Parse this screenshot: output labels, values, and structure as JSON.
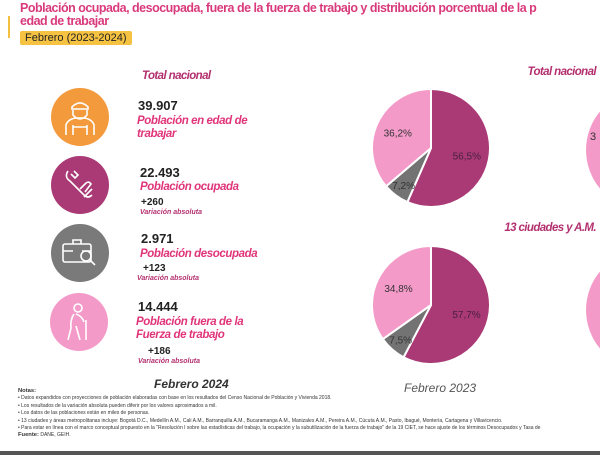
{
  "header": {
    "title_line1": "Población ocupada, desocupada, fuera de la fuerza de trabajo y distribución porcentual de la p",
    "title_line2": "edad de trabajar",
    "period_badge": "Febrero (2023-2024)"
  },
  "left": {
    "section": "Total nacional",
    "items": [
      {
        "icon": "worker-icon",
        "value": "39.907",
        "label1": "Población en edad de",
        "label2": "trabajar",
        "color": "#f39a3d"
      },
      {
        "icon": "wrench-hand-icon",
        "value": "22.493",
        "label1": "Población ocupada",
        "change": "+260",
        "change_label": "Variación absoluta",
        "color": "#a93a75"
      },
      {
        "icon": "briefcase-search-icon",
        "value": "2.971",
        "label1": "Población desocupada",
        "change": "+123",
        "change_label": "Variación absoluta",
        "color": "#7a7a7a"
      },
      {
        "icon": "elderly-person-icon",
        "value": "14.444",
        "label1": "Población fuera de la",
        "label2": "Fuerza de trabajo",
        "change": "+186",
        "change_label": "Variación absoluta",
        "color": "#f49ac9"
      }
    ],
    "period": "Febrero 2024"
  },
  "right": {
    "section1": "Total nacional",
    "section2": "13 ciudades y A.M.",
    "period": "Febrero 2023",
    "partial_label1": "3",
    "partial_label2": "3"
  },
  "chart_data": [
    {
      "type": "pie",
      "title": "",
      "categories": [
        "Ocupada",
        "Desocupada",
        "Fuera de la fuerza de trabajo"
      ],
      "values": [
        56.5,
        7.2,
        36.2
      ],
      "labels": [
        "56,5%",
        "7,2%",
        "36,2%"
      ],
      "colors": [
        "#a93a75",
        "#737373",
        "#f49ac9"
      ]
    },
    {
      "type": "pie",
      "title": "",
      "categories": [
        "Ocupada",
        "Desocupada",
        "Fuera de la fuerza de trabajo"
      ],
      "values": [
        57.7,
        7.5,
        34.8
      ],
      "labels": [
        "57,7%",
        "7,5%",
        "34,8%"
      ],
      "colors": [
        "#a93a75",
        "#737373",
        "#f49ac9"
      ]
    }
  ],
  "notes": {
    "heading": "Notas:",
    "lines": [
      "• Datos expandidos con proyecciones de población elaboradas con base en los resultados del Censo Nacional de Población y Vivienda 2018.",
      "• Los resultados de la variación absoluta pueden diferir por los valores aproximados a mil.",
      "• Los datos de las poblaciones están en miles de personas.",
      "• 13 ciudades y áreas metropolitanas incluye: Bogotá D.C., Medellín A.M., Cali A.M., Barranquilla A.M., Bucaramanga A.M., Manizales A.M., Pereira A.M., Cúcuta A.M., Pasto, Ibagué, Montería, Cartagena y Villavicencio.",
      "• Para estar en línea con el marco conceptual propuesto en la \"Resolución I sobre las estadísticas del trabajo, la ocupación y la subutilización de la fuerza de trabajo\" de la 19 CIET, se hace ajuste de los términos Desocupados y Tasa de"
    ],
    "source_label": "Fuente:",
    "source": "DANE, GEIH."
  }
}
